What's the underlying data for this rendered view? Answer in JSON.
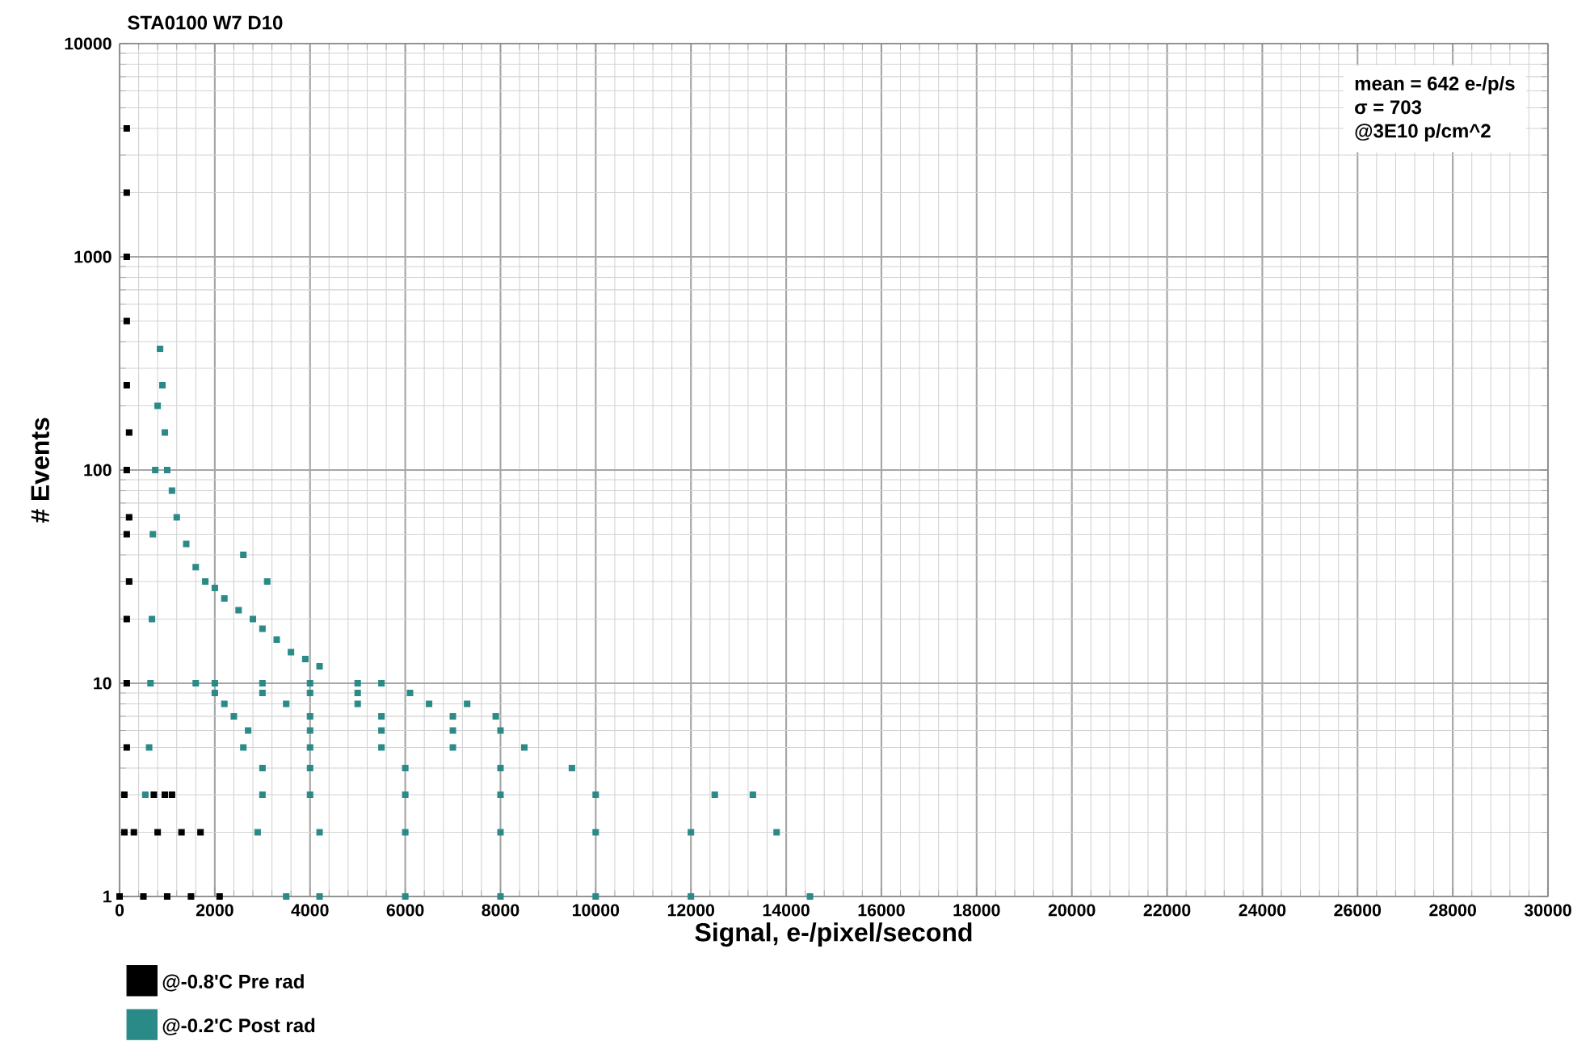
{
  "chart_data": {
    "type": "scatter",
    "title": "STA0100 W7 D10",
    "xlabel": "Signal, e-/pixel/second",
    "ylabel": "# Events",
    "xlim": [
      0,
      30000
    ],
    "xticks": [
      0,
      2000,
      4000,
      6000,
      8000,
      10000,
      12000,
      14000,
      16000,
      18000,
      20000,
      22000,
      24000,
      26000,
      28000,
      30000
    ],
    "ylim": [
      1,
      10000
    ],
    "yticks": [
      1,
      10,
      100,
      1000,
      10000
    ],
    "log": "y",
    "grid": true,
    "legend": "bottom left",
    "marker": "square",
    "annotations": [
      "mean = 642 e-/p/s",
      "σ   = 703",
      "@3E10 p/cm^2"
    ],
    "series": [
      {
        "name": "@-0.8'C Pre rad",
        "color": "#000000",
        "x": [
          150,
          150,
          150,
          150,
          150,
          150,
          150,
          150,
          150,
          150,
          100,
          100,
          0,
          500,
          1000,
          1500,
          2100,
          300,
          800,
          1300,
          1700,
          720,
          950,
          1100,
          200,
          200,
          200
        ],
        "values": [
          4000,
          2000,
          1000,
          500,
          250,
          100,
          50,
          20,
          10,
          5,
          3,
          2,
          1,
          1,
          1,
          1,
          1,
          2,
          2,
          2,
          2,
          3,
          3,
          3,
          30,
          60,
          150
        ]
      },
      {
        "name": "@-0.2'C Post rad",
        "color": "#2a8a87",
        "x": [
          540,
          620,
          650,
          680,
          700,
          750,
          800,
          850,
          900,
          950,
          1000,
          1100,
          1200,
          1400,
          1600,
          1800,
          2000,
          2200,
          2500,
          2800,
          3000,
          3300,
          3600,
          3900,
          4200,
          2600,
          3100,
          1600,
          2000,
          3000,
          4000,
          5000,
          5500,
          2000,
          3000,
          4000,
          5000,
          6100,
          2200,
          3500,
          5000,
          6500,
          7300,
          2400,
          4000,
          5500,
          7000,
          7900,
          2700,
          4000,
          5500,
          7000,
          8000,
          2600,
          4000,
          5500,
          7000,
          8500,
          3000,
          4000,
          6000,
          8000,
          9500,
          3000,
          4000,
          6000,
          8000,
          10000,
          12500,
          13300,
          2900,
          4200,
          6000,
          8000,
          10000,
          12000,
          13800,
          3500,
          4200,
          6000,
          8000,
          10000,
          12000,
          14500
        ],
        "values": [
          3,
          5,
          10,
          20,
          50,
          100,
          200,
          370,
          250,
          150,
          100,
          80,
          60,
          45,
          35,
          30,
          28,
          25,
          22,
          20,
          18,
          16,
          14,
          13,
          12,
          40,
          30,
          10,
          10,
          10,
          10,
          10,
          10,
          9,
          9,
          9,
          9,
          9,
          8,
          8,
          8,
          8,
          8,
          7,
          7,
          7,
          7,
          7,
          6,
          6,
          6,
          6,
          6,
          5,
          5,
          5,
          5,
          5,
          4,
          4,
          4,
          4,
          4,
          3,
          3,
          3,
          3,
          3,
          3,
          3,
          2,
          2,
          2,
          2,
          2,
          2,
          2,
          1,
          1,
          1,
          1,
          1,
          1,
          1
        ]
      }
    ]
  }
}
